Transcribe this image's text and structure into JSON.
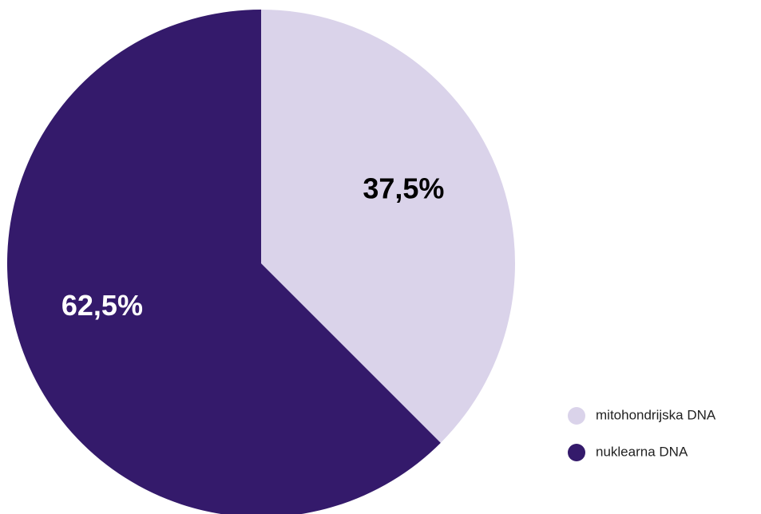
{
  "chart_data": {
    "type": "pie",
    "slices": [
      {
        "label": "mitohondrijska DNA",
        "value": 37.5,
        "display": "37,5%",
        "color": "#dad3ea",
        "label_color": "#000000"
      },
      {
        "label": "nuklearna DNA",
        "value": 62.5,
        "display": "62,5%",
        "color": "#341a6b",
        "label_color": "#ffffff"
      }
    ],
    "start_angle": "12 o'clock",
    "direction": "clockwise",
    "legend_position": "bottom-right"
  }
}
